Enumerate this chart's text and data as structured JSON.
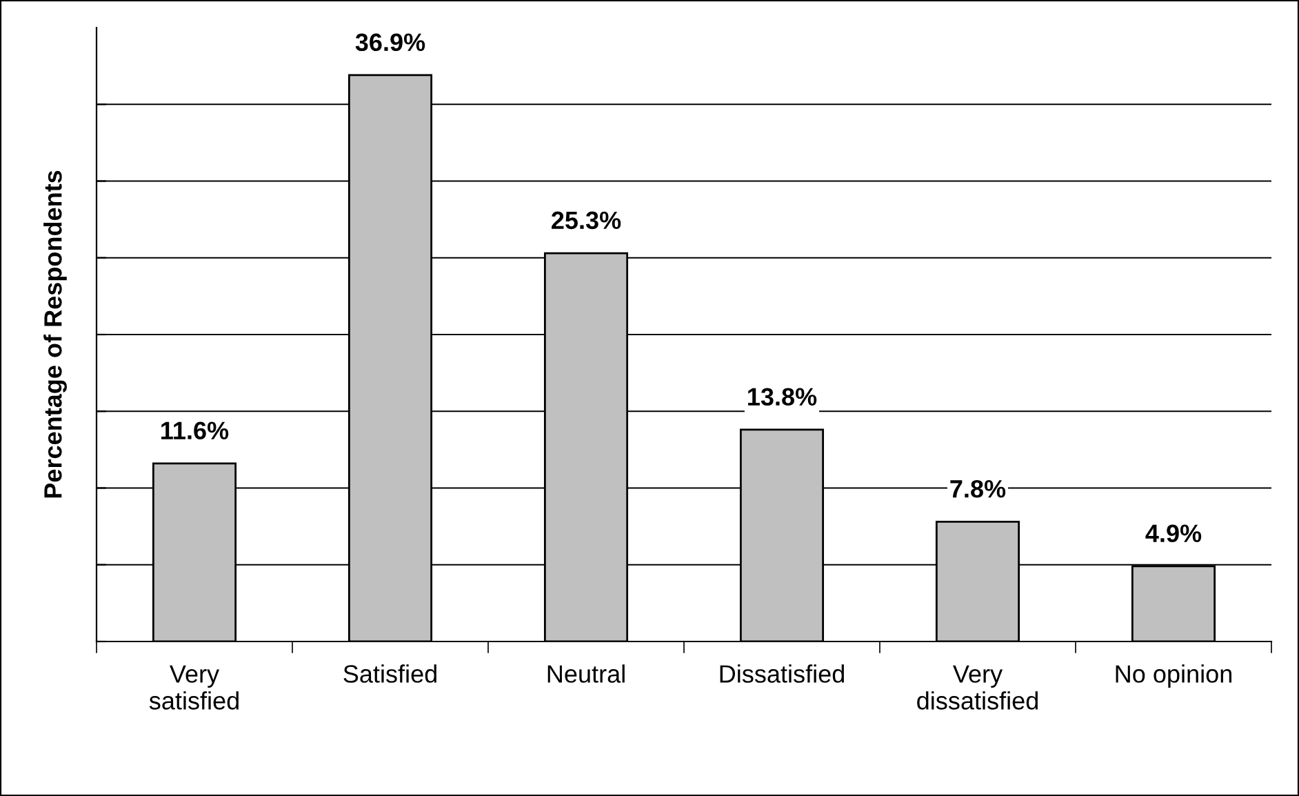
{
  "chart_data": {
    "type": "bar",
    "ylabel": "Percentage of Respondents",
    "categories": [
      "Very\nsatisfied",
      "Satisfied",
      "Neutral",
      "Dissatisfied",
      "Very\ndissatisfied",
      "No opinion"
    ],
    "values": [
      11.6,
      36.9,
      25.3,
      13.8,
      7.8,
      4.9
    ],
    "value_labels": [
      "11.6%",
      "36.9%",
      "25.3%",
      "13.8%",
      "7.8%",
      "4.9%"
    ],
    "color": "#c0c0c0",
    "ylim": [
      0,
      40
    ],
    "yticks": [
      {
        "value": 0,
        "label": null
      },
      {
        "value": 5,
        "label": null
      },
      {
        "value": 10,
        "label": null
      },
      {
        "value": 15,
        "label": null
      },
      {
        "value": 20,
        "label": null
      },
      {
        "value": 25,
        "label": null
      },
      {
        "value": 30,
        "label": null
      },
      {
        "value": 35,
        "label": null
      }
    ],
    "grid": "y",
    "legend": false
  }
}
